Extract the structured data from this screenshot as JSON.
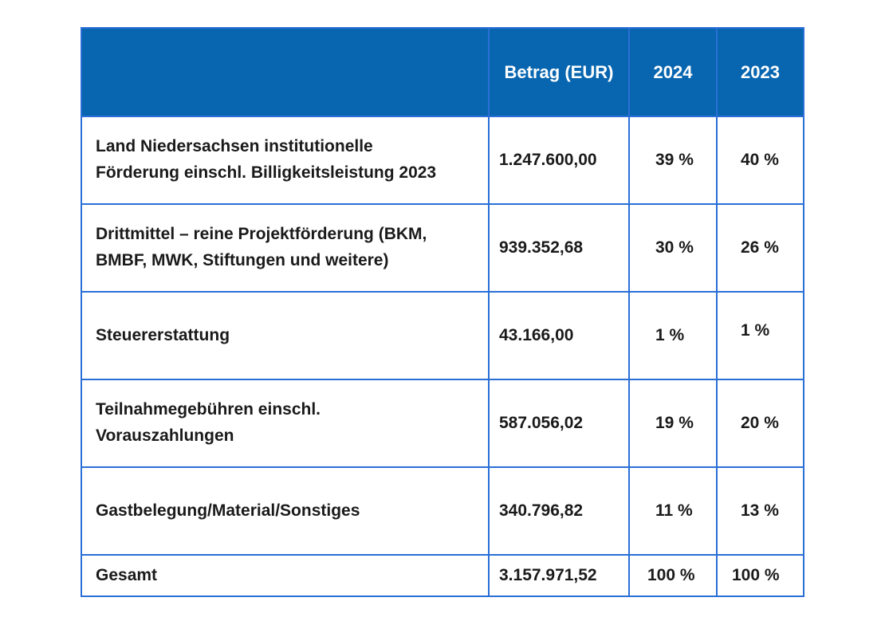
{
  "table": {
    "headers": [
      "",
      "Betrag (EUR)",
      "2024",
      "2023"
    ],
    "rows": [
      {
        "label_lines": [
          "Land Niedersachsen institutionelle",
          "Förderung einschl. Billigkeitsleistung 2023"
        ],
        "amount": "1.247.600,00",
        "pct_2024": "39 %",
        "pct_2023": "40 %"
      },
      {
        "label_lines": [
          "Drittmittel – reine Projektförderung (BKM,",
          "BMBF, MWK, Stiftungen und weitere)"
        ],
        "amount": "939.352,68",
        "pct_2024": "30 %",
        "pct_2023": "26 %"
      },
      {
        "label_lines": [
          "Steuererstattung"
        ],
        "amount": "43.166,00",
        "pct_2024": "1 %",
        "pct_2023": "1 %"
      },
      {
        "label_lines": [
          "Teilnahmegebühren einschl.",
          "Vorauszahlungen"
        ],
        "amount": "587.056,02",
        "pct_2024": "19 %",
        "pct_2023": "20 %"
      },
      {
        "label_lines": [
          "Gastbelegung/Material/Sonstiges"
        ],
        "amount": "340.796,82",
        "pct_2024": "11 %",
        "pct_2023": "13 %"
      }
    ],
    "total": {
      "label": "Gesamt",
      "amount": "3.157.971,52",
      "pct_2024": "100 %",
      "pct_2023": "100 %"
    }
  },
  "colors": {
    "header_background": "#0866b0",
    "header_text": "#ffffff",
    "border": "#2a6fd6",
    "body_text": "#1a1a1a"
  }
}
